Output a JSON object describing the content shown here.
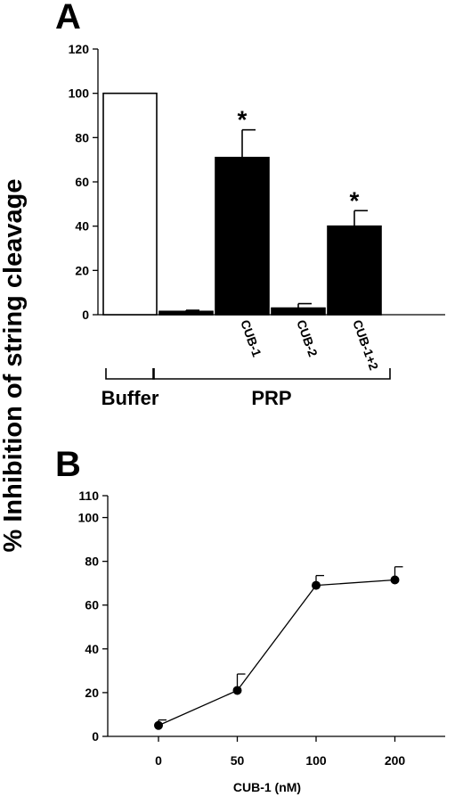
{
  "figure": {
    "ylabel": "% Inhibition of string cleavage"
  },
  "chart_data": [
    {
      "type": "bar",
      "panel_label": "A",
      "categories": [
        "",
        "",
        "CUB-1",
        "CUB-2",
        "CUB-1+2"
      ],
      "values": [
        100,
        1.5,
        71,
        3,
        40
      ],
      "errors": [
        0,
        0.5,
        12.5,
        2,
        7
      ],
      "fill_colors": [
        "#ffffff",
        "#000000",
        "#000000",
        "#000000",
        "#000000"
      ],
      "significance": [
        "",
        "",
        "*",
        "",
        "*"
      ],
      "groups": [
        {
          "label": "Buffer",
          "members": [
            0
          ]
        },
        {
          "label": "PRP",
          "members": [
            1,
            2,
            3,
            4
          ]
        }
      ],
      "ylim": [
        0,
        120
      ],
      "yticks": [
        0,
        20,
        40,
        60,
        80,
        100,
        120
      ],
      "grid": false
    },
    {
      "type": "line",
      "panel_label": "B",
      "categories": [
        "0",
        "50",
        "100",
        "200"
      ],
      "values": [
        5,
        21,
        69,
        71.5
      ],
      "errors": [
        2.5,
        7.5,
        4.5,
        6
      ],
      "xlabel": "CUB-1 (nM)",
      "ylim": [
        0,
        110
      ],
      "yticks": [
        0,
        20,
        40,
        60,
        80,
        100,
        110
      ],
      "grid": false
    }
  ]
}
